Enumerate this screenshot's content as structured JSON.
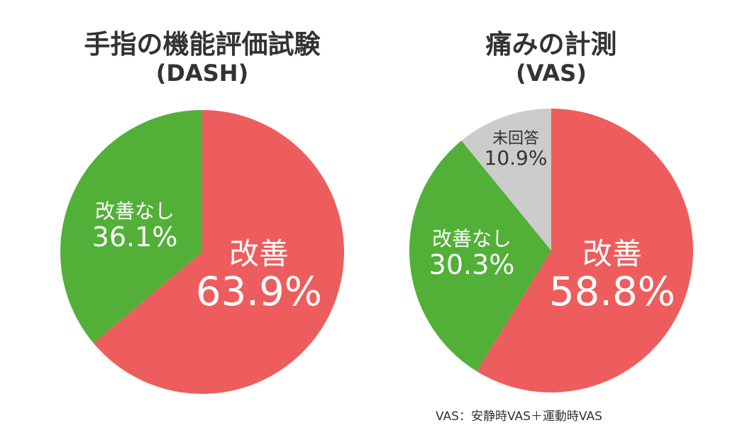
{
  "colors": {
    "improved": "#ee5d5d",
    "not_improved": "#52b038",
    "no_answer": "#cccccc",
    "text": "#333333"
  },
  "chart_data": [
    {
      "type": "pie",
      "title": "手指の機能評価試験",
      "subtitle": "(DASH)",
      "slices": [
        {
          "label": "改善",
          "value": 63.9,
          "display": "63.9%",
          "color": "#ee5d5d"
        },
        {
          "label": "改善なし",
          "value": 36.1,
          "display": "36.1%",
          "color": "#52b038"
        }
      ],
      "start_angle": "12 o'clock, clockwise"
    },
    {
      "type": "pie",
      "title": "痛みの計測",
      "subtitle": "(VAS)",
      "slices": [
        {
          "label": "改善",
          "value": 58.8,
          "display": "58.8%",
          "color": "#ee5d5d"
        },
        {
          "label": "改善なし",
          "value": 30.3,
          "display": "30.3%",
          "color": "#52b038"
        },
        {
          "label": "未回答",
          "value": 10.9,
          "display": "10.9%",
          "color": "#cccccc"
        }
      ],
      "start_angle": "12 o'clock, clockwise",
      "footnote": "VAS：安静時VAS＋運動時VAS"
    }
  ],
  "left": {
    "title": "手指の機能評価試験",
    "subtitle": "(DASH)",
    "improved_label": "改善",
    "improved_value": "63.9%",
    "not_improved_label": "改善なし",
    "not_improved_value": "36.1%"
  },
  "right": {
    "title": "痛みの計測",
    "subtitle": "(VAS)",
    "improved_label": "改善",
    "improved_value": "58.8%",
    "not_improved_label": "改善なし",
    "not_improved_value": "30.3%",
    "no_answer_label": "未回答",
    "no_answer_value": "10.9%",
    "footnote": "VAS：安静時VAS＋運動時VAS"
  }
}
